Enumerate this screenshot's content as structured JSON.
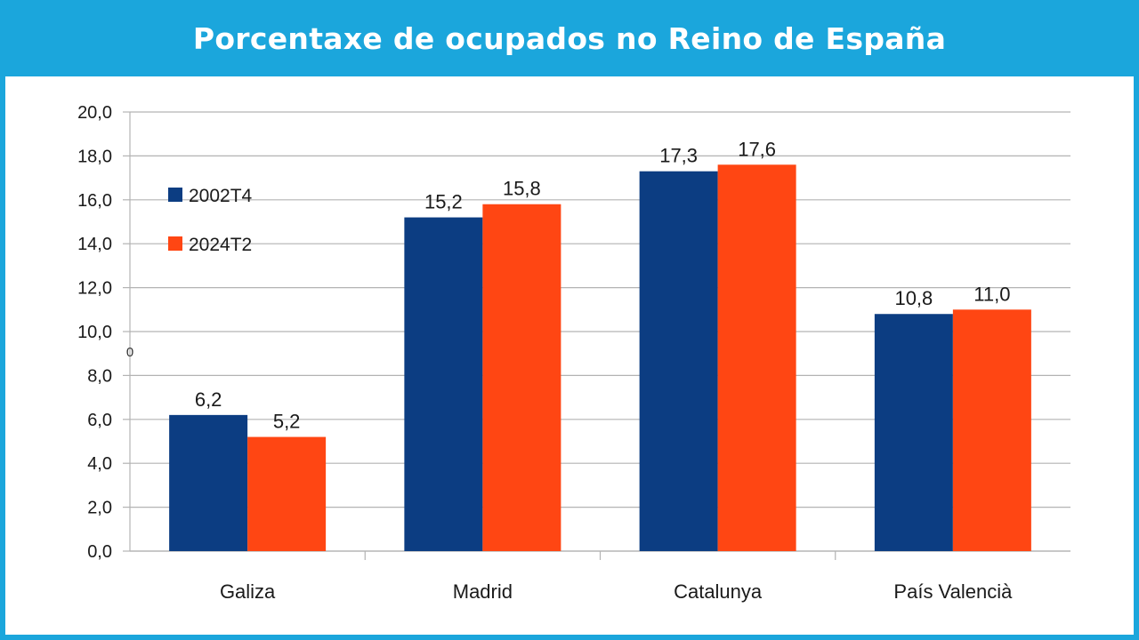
{
  "colors": {
    "frame": "#1ba6dc",
    "title_text": "#ffffff",
    "gridline": "#b3b3b3",
    "axis": "#b3b3b3"
  },
  "chart_data": {
    "type": "bar",
    "title": "Porcentaxe de ocupados no Reino de España",
    "xlabel": "",
    "ylabel": "",
    "categories": [
      "Galiza",
      "Madrid",
      "Catalunya",
      "País Valencià"
    ],
    "series": [
      {
        "name": "2002T4",
        "color": "#0c3d82",
        "values": [
          6.2,
          15.2,
          17.3,
          10.8
        ],
        "labels": [
          "6,2",
          "15,2",
          "17,3",
          "10,8"
        ]
      },
      {
        "name": "2024T2",
        "color": "#ff4613",
        "values": [
          5.2,
          15.8,
          17.6,
          11.0
        ],
        "labels": [
          "5,2",
          "15,8",
          "17,6",
          "11,0"
        ]
      }
    ],
    "ylim": [
      0,
      20
    ],
    "yticks": [
      "0,0",
      "2,0",
      "4,0",
      "6,0",
      "8,0",
      "10,0",
      "12,0",
      "14,0",
      "16,0",
      "18,0",
      "20,0"
    ],
    "grid": true,
    "legend_position": "top-left",
    "stray_text": "0"
  }
}
